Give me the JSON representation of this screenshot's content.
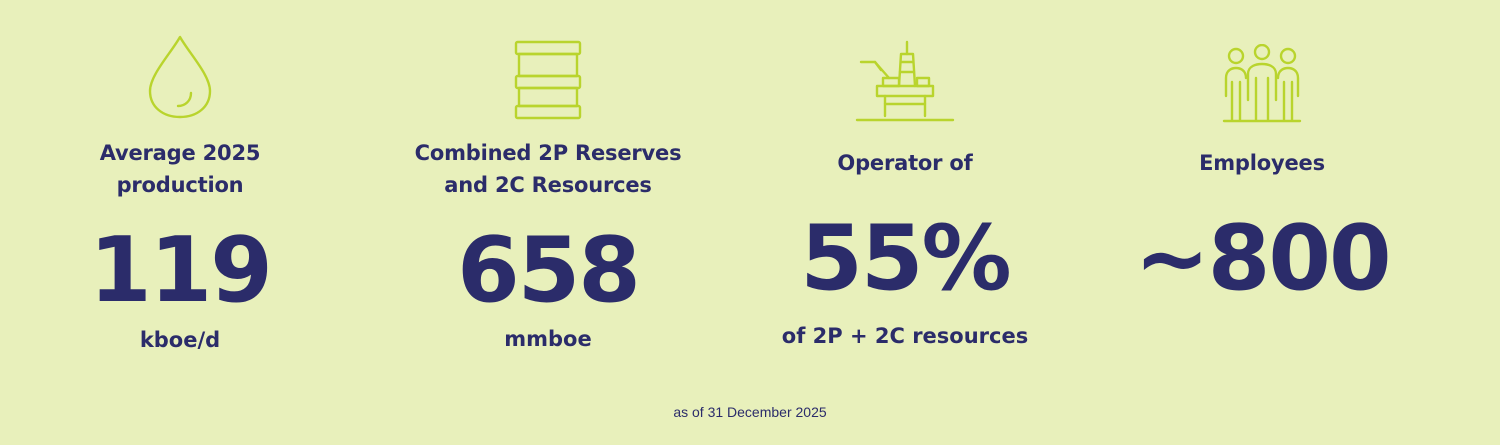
{
  "colors": {
    "background": "#e8f0bb",
    "text": "#2b2c6a",
    "icon": "#b9d42d"
  },
  "stats": [
    {
      "icon": "droplet-icon",
      "label_line1": "Average 2025",
      "label_line2": "production",
      "value": "119",
      "unit": "kboe/d"
    },
    {
      "icon": "barrel-icon",
      "label_line1": "Combined 2P Reserves",
      "label_line2": "and 2C Resources",
      "value": "658",
      "unit": "mmboe"
    },
    {
      "icon": "oil-platform-icon",
      "label_line1": "Operator of",
      "value": "55%",
      "unit": "of 2P + 2C resources"
    },
    {
      "icon": "people-group-icon",
      "label_line1": "Employees",
      "value": "~800"
    }
  ],
  "footnote": "as of 31 December 2025"
}
